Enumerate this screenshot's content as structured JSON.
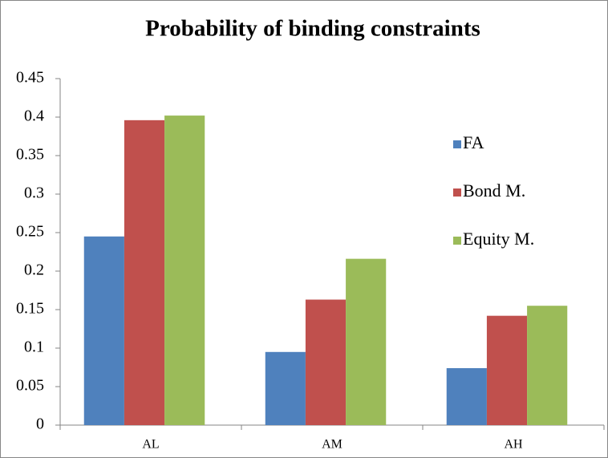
{
  "chart_data": {
    "type": "bar",
    "title": "Probability of binding constraints",
    "categories": [
      "AL",
      "AM",
      "AH"
    ],
    "series": [
      {
        "name": "FA",
        "color": "#4f81bd",
        "values": [
          0.245,
          0.095,
          0.074
        ]
      },
      {
        "name": "Bond M.",
        "color": "#c0504d",
        "values": [
          0.396,
          0.163,
          0.142
        ]
      },
      {
        "name": "Equity M.",
        "color": "#9bbb59",
        "values": [
          0.402,
          0.216,
          0.155
        ]
      }
    ],
    "ylim": [
      0,
      0.45
    ],
    "yticks": [
      0,
      0.05,
      0.1,
      0.15,
      0.2,
      0.25,
      0.3,
      0.35,
      0.4,
      0.45
    ],
    "grid": false,
    "legend": "right"
  }
}
